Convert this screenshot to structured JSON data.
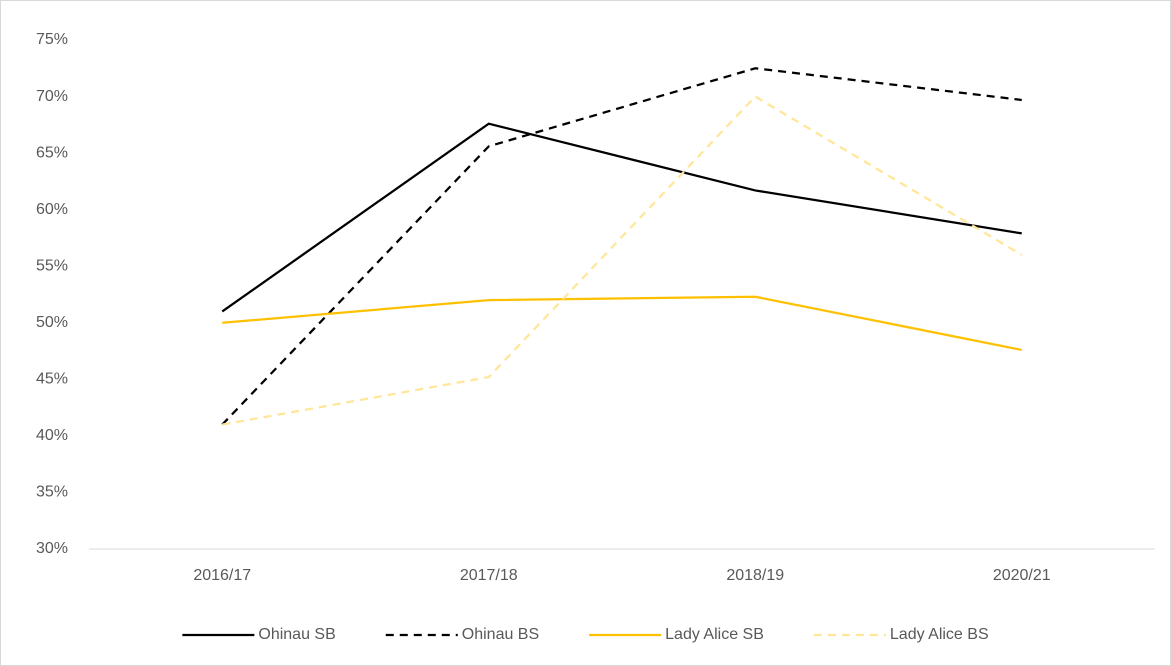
{
  "chart_data": {
    "type": "line",
    "categories": [
      "2016/17",
      "2017/18",
      "2018/19",
      "2020/21"
    ],
    "series": [
      {
        "name": "Ohinau SB",
        "color": "#000000",
        "dashed": false,
        "values": [
          51,
          67.6,
          61.7,
          57.9
        ]
      },
      {
        "name": "Ohinau BS",
        "color": "#000000",
        "dashed": true,
        "values": [
          41,
          65.6,
          72.5,
          69.7
        ]
      },
      {
        "name": "Lady Alice SB",
        "color": "#FFC000",
        "dashed": false,
        "values": [
          50,
          52,
          52.3,
          47.6
        ]
      },
      {
        "name": "Lady Alice BS",
        "color": "#FFE699",
        "dashed": true,
        "values": [
          41,
          45.2,
          70,
          56
        ]
      }
    ],
    "ylim": [
      30,
      75
    ],
    "yticks": [
      {
        "value": 30,
        "label": "30%"
      },
      {
        "value": 35,
        "label": "35%"
      },
      {
        "value": 40,
        "label": "40%"
      },
      {
        "value": 45,
        "label": "45%"
      },
      {
        "value": 50,
        "label": "50%"
      },
      {
        "value": 55,
        "label": "55%"
      },
      {
        "value": 60,
        "label": "60%"
      },
      {
        "value": 65,
        "label": "65%"
      },
      {
        "value": 70,
        "label": "70%"
      },
      {
        "value": 75,
        "label": "75%"
      }
    ],
    "grid": false,
    "legend": "bottom"
  }
}
